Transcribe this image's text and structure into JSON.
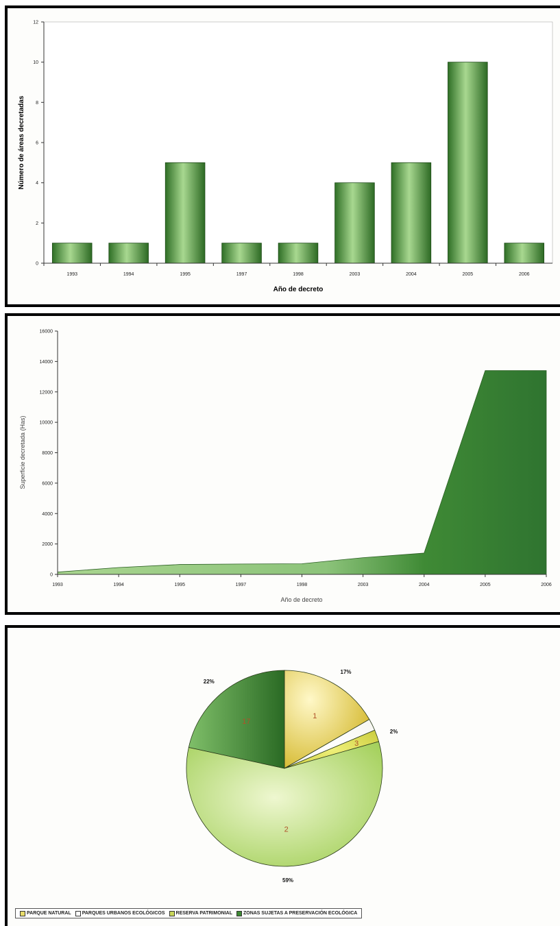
{
  "chart_data": [
    {
      "type": "bar",
      "categories": [
        "1993",
        "1994",
        "1995",
        "1997",
        "1998",
        "2003",
        "2004",
        "2005",
        "2006"
      ],
      "values": [
        1,
        1,
        5,
        1,
        1,
        4,
        5,
        10,
        1
      ],
      "xlabel": "Año de decreto",
      "ylabel": "Número de áreas decretadas",
      "ylim": [
        0,
        12
      ],
      "yticks": [
        "0",
        "2",
        "4",
        "6",
        "8",
        "10",
        "12"
      ],
      "color": "#4f9a3a"
    },
    {
      "type": "area",
      "categories": [
        "1993",
        "1994",
        "1995",
        "1997",
        "1998",
        "2003",
        "2004",
        "2005",
        "2006"
      ],
      "values": [
        150,
        450,
        650,
        680,
        700,
        1100,
        1400,
        13400,
        13400
      ],
      "xlabel": "Año de decreto",
      "ylabel": "Superficie decretada (Has)",
      "ylim": [
        0,
        16000
      ],
      "yticks": [
        "0",
        "2000",
        "4000",
        "6000",
        "8000",
        "10000",
        "12000",
        "14000",
        "16000"
      ],
      "color": "#3f8a35"
    },
    {
      "type": "pie",
      "slices": [
        {
          "name": "PARQUE NATURAL",
          "label": "1",
          "percent": "17%",
          "value": 17,
          "color": "#e8dc6a"
        },
        {
          "name": "PARQUES URBANOS ECOLÓGICOS",
          "label": "",
          "percent": "",
          "value": 2,
          "color": "#ffffff"
        },
        {
          "name": "RESERVA PATRIMONIAL",
          "label": "3",
          "percent": "2%",
          "value": 2,
          "color": "#d9dc55"
        },
        {
          "name": "ZONAS SUJETAS A PRESERVACIÓN ECOLÓGICA",
          "label": "2",
          "percent": "59%",
          "value": 59,
          "color": "#b9d97a"
        },
        {
          "name": "",
          "label": "17",
          "percent": "22%",
          "value": 22,
          "color": "#3f8a35"
        }
      ],
      "legend": [
        {
          "label": "PARQUE NATURAL",
          "color": "#e8dc6a"
        },
        {
          "label": "PARQUES URBANOS ECOLÓGICOS",
          "color": "#ffffff"
        },
        {
          "label": "RESERVA PATRIMONIAL",
          "color": "#c9d65a"
        },
        {
          "label": "ZONAS SUJETAS A PRESERVACIÓN ECOLÓGICA",
          "color": "#3f8a35"
        }
      ]
    }
  ]
}
